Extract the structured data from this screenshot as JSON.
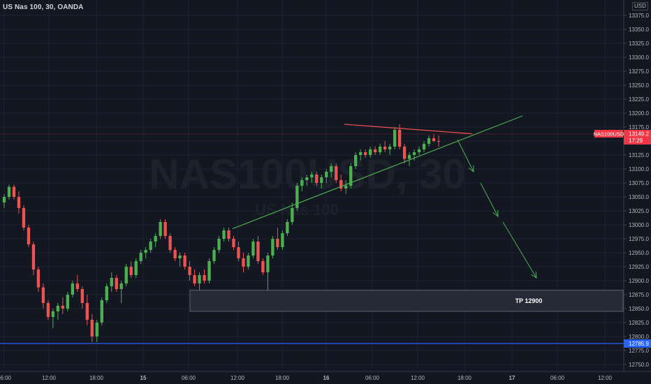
{
  "header": {
    "title": "US Nas 100, 30, OANDA",
    "currency": "USD"
  },
  "watermark": {
    "symbol": "NAS100USD, 30",
    "description": "US Nas 100"
  },
  "price_axis": {
    "ticks": [
      "13375.0",
      "13350.0",
      "13325.0",
      "13300.0",
      "13275.0",
      "13250.0",
      "13225.0",
      "13200.0",
      "13175.0",
      "13150.0",
      "13125.0",
      "13100.0",
      "13075.0",
      "13050.0",
      "13025.0",
      "13000.0",
      "12975.0",
      "12950.0",
      "12925.0",
      "12900.0",
      "12875.0",
      "12850.0",
      "12825.0",
      "12800.0",
      "12775.0",
      "12750.0"
    ]
  },
  "time_axis": {
    "ticks": [
      "06:00",
      "12:00",
      "18:00",
      "15",
      "06:00",
      "12:00",
      "18:00",
      "16",
      "06:00",
      "12:00",
      "18:00",
      "17",
      "06:00",
      "12:00"
    ]
  },
  "current_price": {
    "symbol": "NAS100USD",
    "value": "13149.2",
    "countdown": "17:29",
    "color": "#f23645"
  },
  "horizontal_line": {
    "value": "12785.9",
    "color": "#2962ff"
  },
  "target_zone": {
    "label": "TP  12900"
  },
  "colors": {
    "up": "#26a69a",
    "up_body": "#4caf50",
    "down": "#ef5350",
    "trendline": "#4caf50",
    "resistance": "#ef5350",
    "arrow": "#4caf50"
  },
  "chart_data": {
    "type": "candlestick",
    "title": "US Nas 100, 30, OANDA",
    "ylim": [
      12740,
      13385
    ],
    "candles": [
      [
        13040,
        13055,
        13030,
        13050
      ],
      [
        13050,
        13072,
        13045,
        13068
      ],
      [
        13068,
        13072,
        13045,
        13050
      ],
      [
        13050,
        13060,
        13020,
        13030
      ],
      [
        13030,
        13035,
        12990,
        12995
      ],
      [
        12995,
        13000,
        12960,
        12965
      ],
      [
        12965,
        12970,
        12910,
        12920
      ],
      [
        12920,
        12925,
        12880,
        12888
      ],
      [
        12888,
        12895,
        12850,
        12860
      ],
      [
        12860,
        12865,
        12830,
        12835
      ],
      [
        12835,
        12850,
        12815,
        12845
      ],
      [
        12845,
        12860,
        12830,
        12855
      ],
      [
        12855,
        12870,
        12840,
        12850
      ],
      [
        12850,
        12880,
        12845,
        12875
      ],
      [
        12875,
        12900,
        12870,
        12895
      ],
      [
        12895,
        12910,
        12880,
        12885
      ],
      [
        12885,
        12890,
        12850,
        12860
      ],
      [
        12860,
        12875,
        12820,
        12830
      ],
      [
        12830,
        12840,
        12790,
        12800
      ],
      [
        12800,
        12830,
        12790,
        12825
      ],
      [
        12825,
        12870,
        12820,
        12865
      ],
      [
        12865,
        12895,
        12860,
        12890
      ],
      [
        12890,
        12915,
        12880,
        12905
      ],
      [
        12905,
        12910,
        12880,
        12885
      ],
      [
        12885,
        12900,
        12860,
        12895
      ],
      [
        12895,
        12930,
        12890,
        12925
      ],
      [
        12925,
        12935,
        12905,
        12910
      ],
      [
        12910,
        12940,
        12905,
        12935
      ],
      [
        12935,
        12955,
        12930,
        12950
      ],
      [
        12950,
        12960,
        12940,
        12955
      ],
      [
        12955,
        12975,
        12950,
        12970
      ],
      [
        12970,
        12985,
        12960,
        12980
      ],
      [
        12980,
        13010,
        12975,
        13005
      ],
      [
        13005,
        13010,
        12975,
        12980
      ],
      [
        12980,
        12985,
        12950,
        12955
      ],
      [
        12955,
        12960,
        12935,
        12940
      ],
      [
        12940,
        12950,
        12925,
        12945
      ],
      [
        12945,
        12950,
        12920,
        12925
      ],
      [
        12925,
        12935,
        12900,
        12910
      ],
      [
        12910,
        12920,
        12890,
        12895
      ],
      [
        12895,
        12915,
        12880,
        12910
      ],
      [
        12910,
        12920,
        12895,
        12900
      ],
      [
        12900,
        12940,
        12895,
        12935
      ],
      [
        12935,
        12960,
        12930,
        12955
      ],
      [
        12955,
        12980,
        12950,
        12975
      ],
      [
        12975,
        12995,
        12970,
        12990
      ],
      [
        12990,
        12995,
        12970,
        12975
      ],
      [
        12975,
        12980,
        12955,
        12960
      ],
      [
        12960,
        12970,
        12935,
        12940
      ],
      [
        12940,
        12950,
        12915,
        12925
      ],
      [
        12925,
        12950,
        12920,
        12945
      ],
      [
        12945,
        12975,
        12940,
        12970
      ],
      [
        12970,
        12980,
        12930,
        12935
      ],
      [
        12935,
        12940,
        12910,
        12915
      ],
      [
        12915,
        12950,
        12880,
        12945
      ],
      [
        12945,
        12980,
        12940,
        12975
      ],
      [
        12975,
        12995,
        12955,
        12960
      ],
      [
        12960,
        12990,
        12955,
        12985
      ],
      [
        12985,
        13010,
        12980,
        13005
      ],
      [
        13005,
        13040,
        13000,
        13030
      ],
      [
        13030,
        13075,
        13025,
        13070
      ],
      [
        13070,
        13085,
        13060,
        13080
      ],
      [
        13080,
        13090,
        13070,
        13085
      ],
      [
        13085,
        13095,
        13075,
        13090
      ],
      [
        13090,
        13095,
        13070,
        13075
      ],
      [
        13075,
        13090,
        13065,
        13085
      ],
      [
        13085,
        13100,
        13075,
        13095
      ],
      [
        13095,
        13110,
        13085,
        13105
      ],
      [
        13105,
        13110,
        13075,
        13080
      ],
      [
        13080,
        13090,
        13060,
        13065
      ],
      [
        13065,
        13080,
        13055,
        13070
      ],
      [
        13070,
        13110,
        13065,
        13105
      ],
      [
        13105,
        13130,
        13100,
        13125
      ],
      [
        13125,
        13135,
        13115,
        13130
      ],
      [
        13130,
        13135,
        13120,
        13125
      ],
      [
        13125,
        13140,
        13120,
        13135
      ],
      [
        13135,
        13140,
        13125,
        13130
      ],
      [
        13130,
        13145,
        13125,
        13140
      ],
      [
        13140,
        13150,
        13130,
        13135
      ],
      [
        13135,
        13145,
        13125,
        13140
      ],
      [
        13140,
        13175,
        13135,
        13170
      ],
      [
        13170,
        13180,
        13135,
        13140
      ],
      [
        13140,
        13145,
        13110,
        13118
      ],
      [
        13118,
        13130,
        13105,
        13125
      ],
      [
        13125,
        13135,
        13115,
        13130
      ],
      [
        13130,
        13140,
        13125,
        13135
      ],
      [
        13135,
        13150,
        13130,
        13145
      ],
      [
        13145,
        13160,
        13140,
        13155
      ],
      [
        13155,
        13162,
        13148,
        13150
      ],
      [
        13150,
        13160,
        13140,
        13149
      ]
    ],
    "trendline": {
      "from": [
        333,
        12993
      ],
      "to": [
        748,
        13195
      ]
    },
    "resistance": {
      "from": [
        493,
        13180
      ],
      "to": [
        676,
        13163
      ]
    },
    "target": {
      "label": "TP  12900",
      "low": 12845,
      "high": 12883
    }
  }
}
